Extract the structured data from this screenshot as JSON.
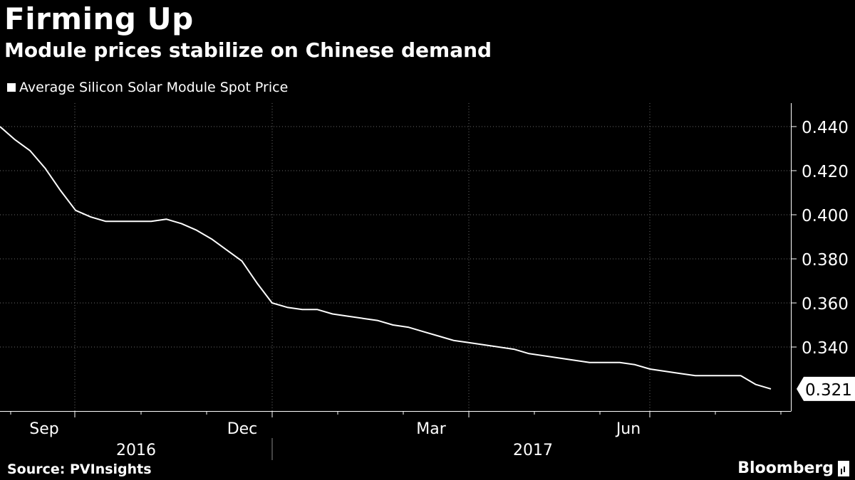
{
  "title": "Firming Up",
  "subtitle": "Module prices stabilize on Chinese demand",
  "source": "Source: PVInsights",
  "brand": "Bloomberg",
  "colors": {
    "background": "#000000",
    "line": "#ffffff",
    "grid": "#6a6a6a"
  },
  "chart_data": {
    "type": "line",
    "title": "Firming Up",
    "series": [
      {
        "name": "Average Silicon Solar Module Spot Price",
        "values": [
          0.44,
          0.434,
          0.429,
          0.421,
          0.411,
          0.402,
          0.399,
          0.397,
          0.397,
          0.397,
          0.397,
          0.398,
          0.396,
          0.393,
          0.389,
          0.384,
          0.379,
          0.369,
          0.36,
          0.358,
          0.357,
          0.357,
          0.355,
          0.354,
          0.353,
          0.352,
          0.35,
          0.349,
          0.347,
          0.345,
          0.343,
          0.342,
          0.341,
          0.34,
          0.339,
          0.337,
          0.336,
          0.335,
          0.334,
          0.333,
          0.333,
          0.333,
          0.332,
          0.33,
          0.329,
          0.328,
          0.327,
          0.327,
          0.327,
          0.327,
          0.323,
          0.321
        ]
      }
    ],
    "x_tick_labels": [
      "Sep",
      "Dec",
      "Mar",
      "Jun"
    ],
    "year_labels": [
      "2016",
      "2017"
    ],
    "y_ticks": [
      "0.440",
      "0.420",
      "0.400",
      "0.380",
      "0.360",
      "0.340"
    ],
    "y_tick_values": [
      0.44,
      0.42,
      0.4,
      0.38,
      0.36,
      0.34
    ],
    "last_value_label": "0.321",
    "last_value": 0.321,
    "ylim": [
      0.315,
      0.45
    ],
    "grid": true,
    "legend_position": "top-left"
  }
}
